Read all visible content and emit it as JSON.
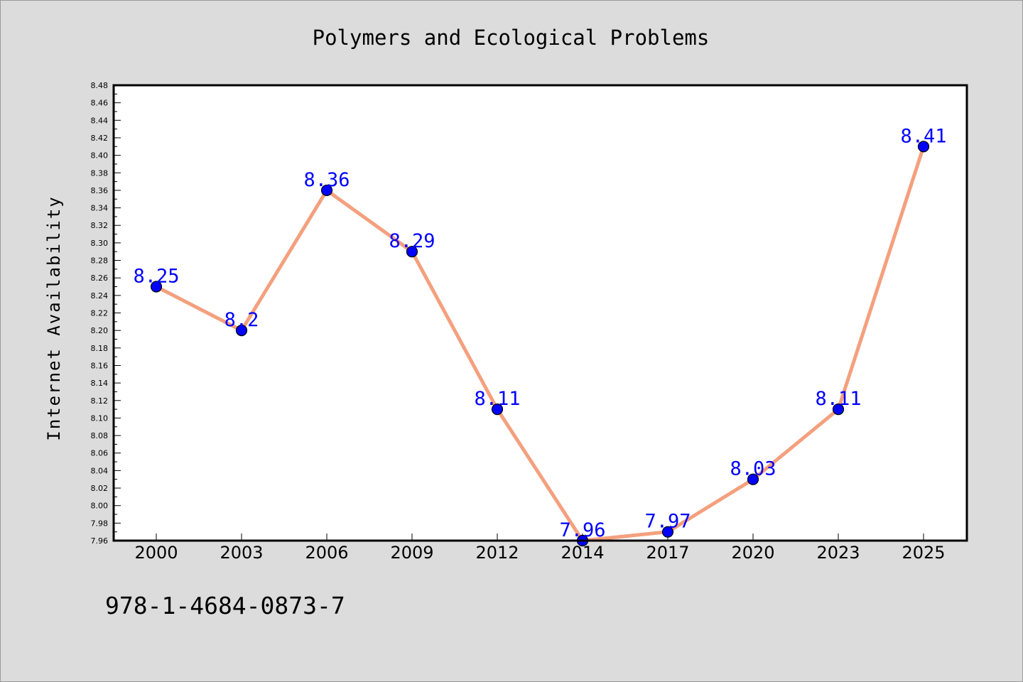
{
  "chart_data": {
    "type": "line",
    "title": "Polymers and Ecological Problems",
    "xlabel": "",
    "ylabel": "Internet Availability",
    "categories": [
      "2000",
      "2003",
      "2006",
      "2009",
      "2012",
      "2014",
      "2017",
      "2020",
      "2023",
      "2025"
    ],
    "series": [
      {
        "values": [
          8.25,
          8.2,
          8.36,
          8.29,
          8.11,
          7.96,
          7.97,
          8.03,
          8.11,
          8.41
        ],
        "data_labels": [
          "8.25",
          "8.2",
          "8.36",
          "8.29",
          "8.11",
          "7.96",
          "7.97",
          "8.03",
          "8.11",
          "8.41"
        ]
      }
    ],
    "ylim": [
      7.96,
      8.48
    ],
    "yticks": [
      "7.96",
      "7.98",
      "8.00",
      "8.02",
      "8.04",
      "8.06",
      "8.08",
      "8.10",
      "8.12",
      "8.14",
      "8.16",
      "8.18",
      "8.20",
      "8.22",
      "8.24",
      "8.26",
      "8.28",
      "8.30",
      "8.32",
      "8.34",
      "8.36",
      "8.38",
      "8.40",
      "8.42",
      "8.44",
      "8.46",
      "8.48"
    ],
    "grid": false,
    "legend": "none",
    "colors": {
      "line": "#f4a07e",
      "marker": "#0000ff",
      "data_label": "#0000ff",
      "background": "#dcdcdc",
      "plot_background": "#ffffff"
    }
  },
  "footer": {
    "isbn": "978-1-4684-0873-7"
  }
}
